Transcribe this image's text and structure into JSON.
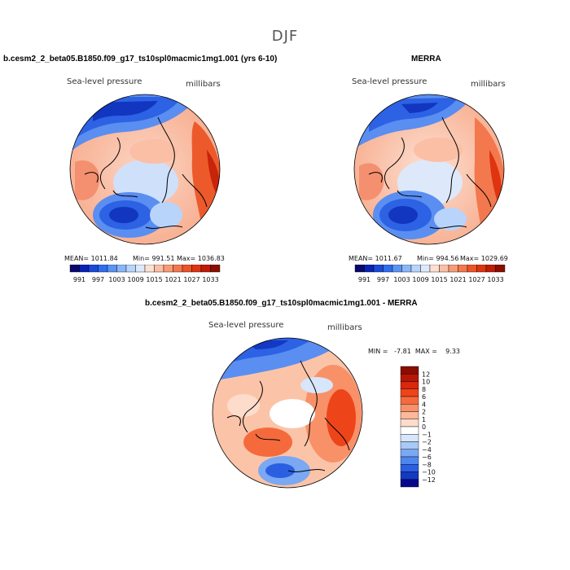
{
  "figure": {
    "title": "DJF"
  },
  "panels": [
    {
      "title": "b.cesm2_2_beta05.B1850.f09_g17_ts10spl0macmic1mg1.001 (yrs 6-10)",
      "variable_label": "Sea-level pressure",
      "units_label": "millibars",
      "mean_text": "MEAN= 1011.84",
      "min_text": "Min= 991.51",
      "max_text": "Max= 1036.83"
    },
    {
      "title": "MERRA",
      "variable_label": "Sea-level pressure",
      "units_label": "millibars",
      "mean_text": "MEAN= 1011.67",
      "min_text": "Min= 994.56",
      "max_text": "Max= 1029.69"
    },
    {
      "title": "b.cesm2_2_beta05.B1850.f09_g17_ts10spl0macmic1mg1.001 - MERRA",
      "variable_label": "Sea-level pressure",
      "units_label": "millibars",
      "minmax_text": "MIN =   -7.81  MAX =    9.33"
    }
  ],
  "colorbar_abs": {
    "tick_labels": [
      "991",
      "997",
      "1003",
      "1009",
      "1015",
      "1021",
      "1027",
      "1033"
    ],
    "colors": [
      "#08086e",
      "#0a22b4",
      "#1a49d8",
      "#2f6df0",
      "#5a93f2",
      "#8ab6f7",
      "#b8d4fb",
      "#dde9fb",
      "#fde0d2",
      "#fbbfa5",
      "#f79b77",
      "#f3784e",
      "#ec5428",
      "#de3410",
      "#c01b06",
      "#8a0d00"
    ]
  },
  "colorbar_diff": {
    "tick_labels": [
      "12",
      "10",
      "8",
      "6",
      "4",
      "2",
      "1",
      "0",
      "−1",
      "−2",
      "−4",
      "−6",
      "−8",
      "−10",
      "−12"
    ],
    "colors": [
      "#8a0d00",
      "#b81605",
      "#d9280c",
      "#ee4419",
      "#f56a3c",
      "#f99168",
      "#fbb89b",
      "#fddccc",
      "#ffffff",
      "#d7e6fb",
      "#a9c9f7",
      "#7aa8f2",
      "#4f85ed",
      "#2b5fe2",
      "#1339c2",
      "#08088a"
    ]
  }
}
